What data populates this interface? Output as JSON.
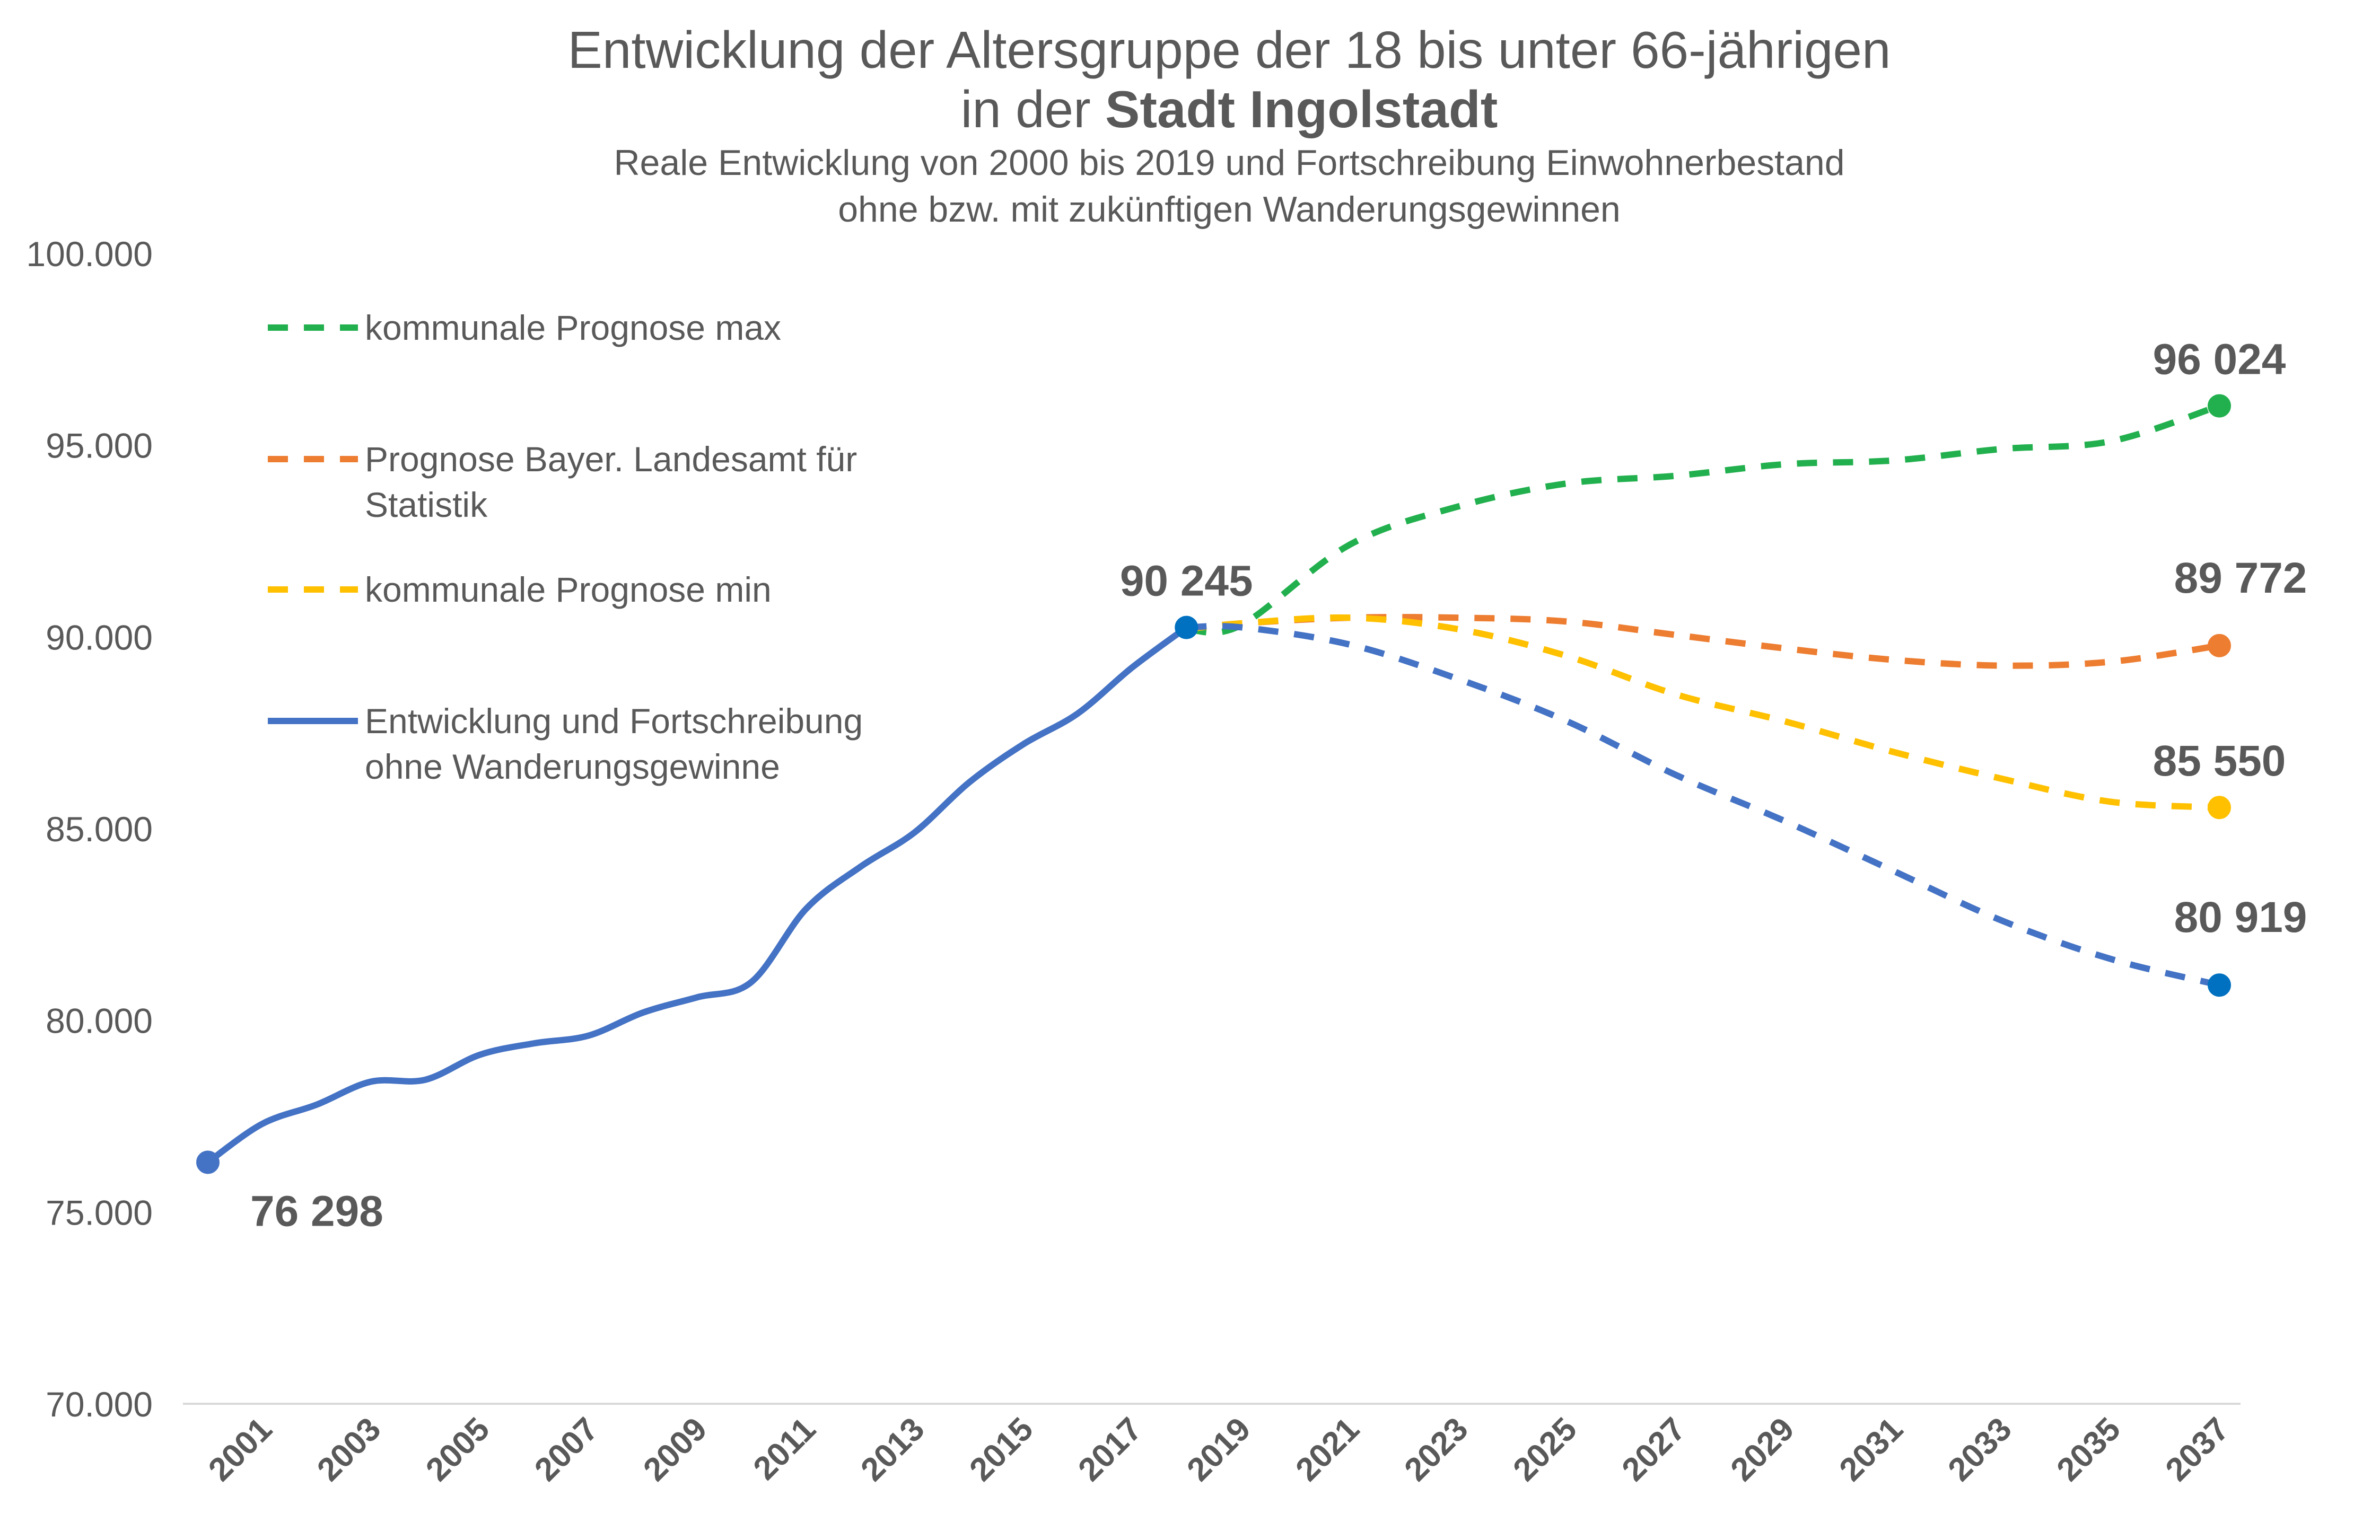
{
  "chart_data": {
    "type": "line",
    "title_line1": "Entwicklung der Altersgruppe der 18 bis unter 66-jährigen",
    "title_line2_prefix": "in der ",
    "title_line2_bold": "Stadt Ingolstadt",
    "subtitle_line1": "Reale Entwicklung von 2000 bis 2019 und Fortschreibung Einwohnerbestand",
    "subtitle_line2": "ohne bzw. mit zukünftigen Wanderungsgewinnen",
    "ylim": [
      70000,
      100000
    ],
    "yticks": [
      {
        "value": 70000,
        "label": "70.000"
      },
      {
        "value": 75000,
        "label": "75.000"
      },
      {
        "value": 80000,
        "label": "80.000"
      },
      {
        "value": 85000,
        "label": "85.000"
      },
      {
        "value": 90000,
        "label": "90.000"
      },
      {
        "value": 95000,
        "label": "95.000"
      },
      {
        "value": 100000,
        "label": "100.000"
      }
    ],
    "xlim": [
      2000,
      2037
    ],
    "xticks": [
      "2001",
      "2003",
      "2005",
      "2007",
      "2009",
      "2011",
      "2013",
      "2015",
      "2017",
      "2019",
      "2021",
      "2023",
      "2025",
      "2027",
      "2029",
      "2031",
      "2033",
      "2035",
      "2037"
    ],
    "grid": false,
    "legend_position": "top-left",
    "series": [
      {
        "name": "kommunale Prognose max",
        "color": "#22b04e",
        "dashed": true,
        "x": [
          2018,
          2019,
          2021,
          2023,
          2025,
          2027,
          2029,
          2031,
          2033,
          2035,
          2037
        ],
        "y": [
          90200,
          90300,
          92400,
          93400,
          94000,
          94200,
          94500,
          94600,
          94900,
          95100,
          96024
        ],
        "end_marker": true
      },
      {
        "name": "Prognose  Bayer. Landesamt für Statistik",
        "color": "#ed7d31",
        "dashed": true,
        "x": [
          2018,
          2019,
          2021,
          2023,
          2025,
          2027,
          2029,
          2031,
          2033,
          2035,
          2037
        ],
        "y": [
          90200,
          90350,
          90500,
          90500,
          90400,
          90050,
          89700,
          89400,
          89250,
          89350,
          89772
        ],
        "end_marker": true
      },
      {
        "name": "kommunale Prognose min",
        "color": "#ffc000",
        "dashed": true,
        "x": [
          2018,
          2019,
          2021,
          2023,
          2025,
          2027,
          2029,
          2031,
          2033,
          2035,
          2037
        ],
        "y": [
          90200,
          90350,
          90500,
          90200,
          89500,
          88500,
          87800,
          87000,
          86300,
          85700,
          85550
        ],
        "end_marker": true
      },
      {
        "name": "Entwicklung und Fortschreibung ohne Wanderungsgewinne",
        "color": "#4472c4",
        "dashed": false,
        "x": [
          2000,
          2001,
          2002,
          2003,
          2004,
          2005,
          2006,
          2007,
          2008,
          2009,
          2010,
          2011,
          2012,
          2013,
          2014,
          2015,
          2016,
          2017,
          2018
        ],
        "y": [
          76298,
          77300,
          77800,
          78400,
          78450,
          79100,
          79400,
          79600,
          80200,
          80600,
          81000,
          82900,
          84000,
          84900,
          86200,
          87200,
          88000,
          89200,
          90245
        ],
        "end_marker": false
      },
      {
        "name": "",
        "color": "#4472c4",
        "dashed": true,
        "x": [
          2018,
          2019,
          2021,
          2023,
          2025,
          2027,
          2029,
          2031,
          2033,
          2035,
          2037
        ],
        "y": [
          90245,
          90250,
          89800,
          88900,
          87800,
          86400,
          85200,
          83900,
          82600,
          81600,
          80919
        ],
        "end_marker": false
      }
    ],
    "legend": [
      {
        "label_lines": [
          "kommunale Prognose max"
        ],
        "color": "#22b04e",
        "dashed": true
      },
      {
        "label_lines": [
          "Prognose  Bayer. Landesamt für",
          "Statistik"
        ],
        "color": "#ed7d31",
        "dashed": true
      },
      {
        "label_lines": [
          "kommunale Prognose min"
        ],
        "color": "#ffc000",
        "dashed": true
      },
      {
        "label_lines": [
          "Entwicklung und Fortschreibung",
          "ohne Wanderungsgewinne"
        ],
        "color": "#4472c4",
        "dashed": false
      }
    ],
    "points": [
      {
        "x": 2000,
        "y": 76298,
        "label": "76 298",
        "color": "#4472c4",
        "anchor": "below-right"
      },
      {
        "x": 2018,
        "y": 90245,
        "label": "90 245",
        "color": "#0070c0",
        "anchor": "above"
      },
      {
        "x": 2037,
        "y": 96024,
        "label": "96 024",
        "color": "#22b04e",
        "anchor": "above"
      },
      {
        "x": 2037,
        "y": 89772,
        "label": "89 772",
        "color": "#ed7d31",
        "anchor": "above-high"
      },
      {
        "x": 2037,
        "y": 85550,
        "label": "85 550",
        "color": "#ffc000",
        "anchor": "above"
      },
      {
        "x": 2037,
        "y": 80919,
        "label": "80 919",
        "color": "#0070c0",
        "anchor": "above-high"
      }
    ]
  }
}
